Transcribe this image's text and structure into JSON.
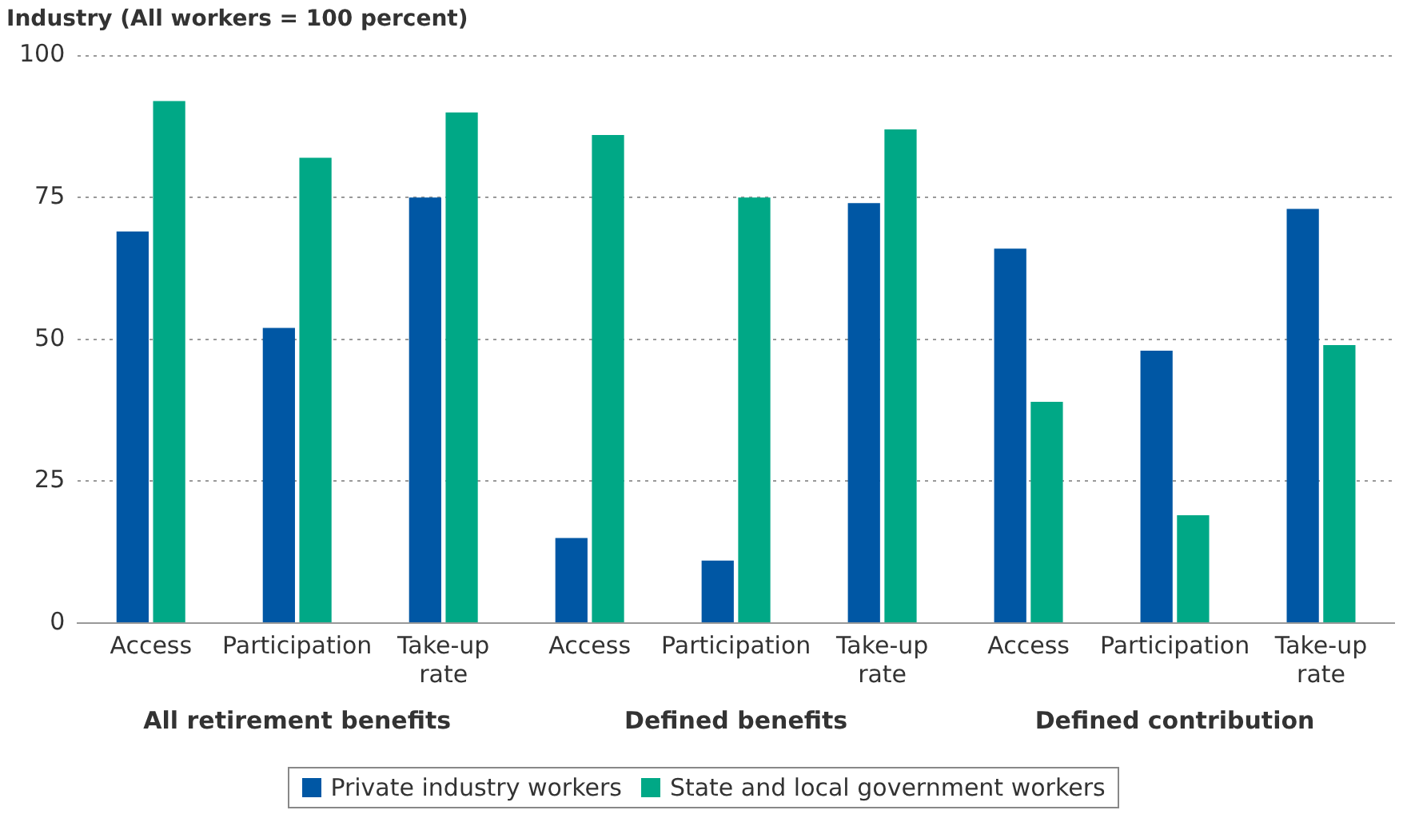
{
  "chart_data": {
    "type": "bar",
    "title": "Industry (All workers = 100 percent)",
    "categories": [
      "Access",
      "Participation",
      "Take-up rate",
      "Access",
      "Participation",
      "Take-up rate",
      "Access",
      "Participation",
      "Take-up rate"
    ],
    "series": [
      {
        "name": "Private industry workers",
        "color": "#0057a4",
        "values": [
          69,
          52,
          75,
          15,
          11,
          74,
          66,
          48,
          73
        ]
      },
      {
        "name": "State and local government workers",
        "color": "#00a886",
        "values": [
          92,
          82,
          90,
          86,
          75,
          87,
          39,
          19,
          49
        ]
      }
    ],
    "ylim": [
      0,
      100
    ],
    "yticks": [
      0,
      25,
      50,
      75,
      100
    ],
    "grid": "y",
    "legend": "bottom",
    "annotations": [
      "All retirement benefits",
      "Defined benefits",
      "Defined contribution"
    ]
  }
}
